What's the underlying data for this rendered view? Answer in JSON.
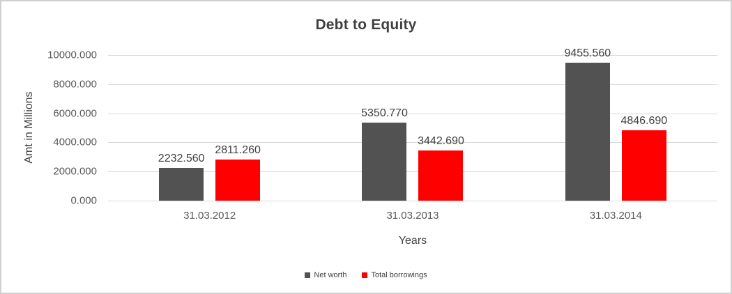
{
  "frame": {
    "border_color": "#d0d0d0",
    "background_color": "#ffffff"
  },
  "chart_data": {
    "type": "bar",
    "title": "Debt to Equity",
    "xlabel": "Years",
    "ylabel": "Amt in Millions",
    "categories": [
      "31.03.2012",
      "31.03.2013",
      "31.03.2014"
    ],
    "series": [
      {
        "name": "Net worth",
        "color": "#525252",
        "values": [
          2232.56,
          5350.77,
          9455.56
        ],
        "labels": [
          "2232.560",
          "5350.770",
          "9455.560"
        ]
      },
      {
        "name": "Total borrowings",
        "color": "#ff0000",
        "values": [
          2811.26,
          3442.69,
          4846.69
        ],
        "labels": [
          "2811.260",
          "3442.690",
          "4846.690"
        ]
      }
    ],
    "ylim": [
      0,
      10000
    ],
    "ytick_labels": [
      "10000.000",
      "8000.000",
      "6000.000",
      "4000.000",
      "2000.000",
      "0.000"
    ],
    "grid": true,
    "gridline_color": "#d9d9d9",
    "tick_text_color": "#595959",
    "title_text_color": "#404040",
    "legend_position": "bottom"
  }
}
